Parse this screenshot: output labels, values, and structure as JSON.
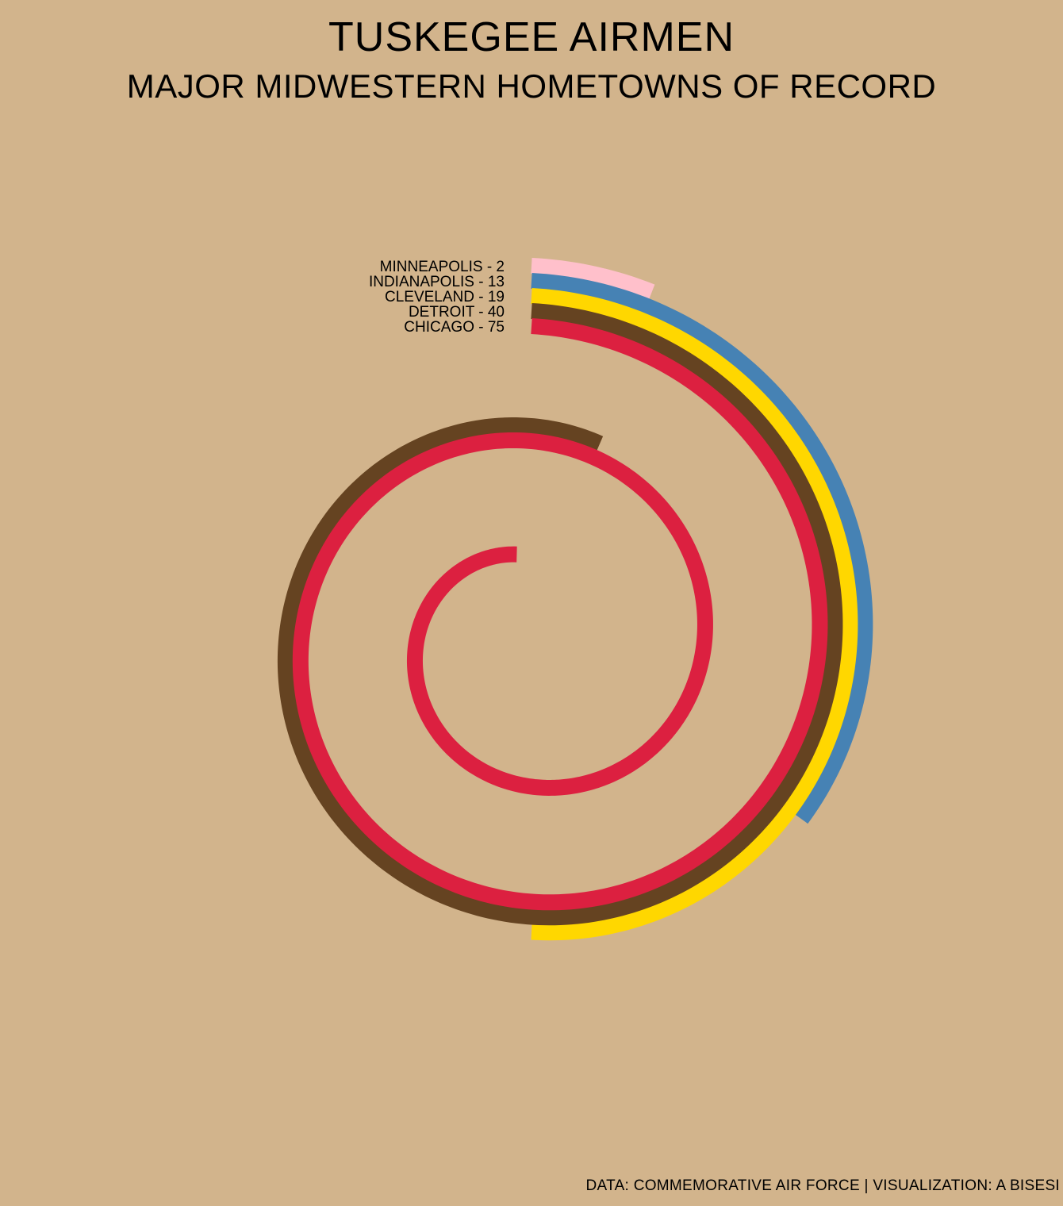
{
  "header": {
    "title": "TUSKEGEE AIRMEN",
    "subtitle": "MAJOR MIDWESTERN HOMETOWNS OF RECORD"
  },
  "caption": "DATA: COMMEMORATIVE AIR FORCE | VISUALIZATION: A BISESI",
  "chart_data": {
    "type": "radial-bar",
    "title": "TUSKEGEE AIRMEN",
    "subtitle": "MAJOR MIDWESTERN HOMETOWNS OF RECORD",
    "labels": [
      "MINNEAPOLIS - 2",
      "INDIANAPOLIS - 13",
      "CLEVELAND - 19",
      "DETROIT - 40",
      "CHICAGO - 75"
    ],
    "series": [
      {
        "city": "MINNEAPOLIS",
        "value": 2,
        "color": "#FFC0CB"
      },
      {
        "city": "INDIANAPOLIS",
        "value": 13,
        "color": "#4682B4"
      },
      {
        "city": "CLEVELAND",
        "value": 19,
        "color": "#FFD700"
      },
      {
        "city": "DETROIT",
        "value": 40,
        "color": "#654321"
      },
      {
        "city": "CHICAGO",
        "value": 75,
        "color": "#DC2040"
      }
    ],
    "values_per_turn": 38
  }
}
